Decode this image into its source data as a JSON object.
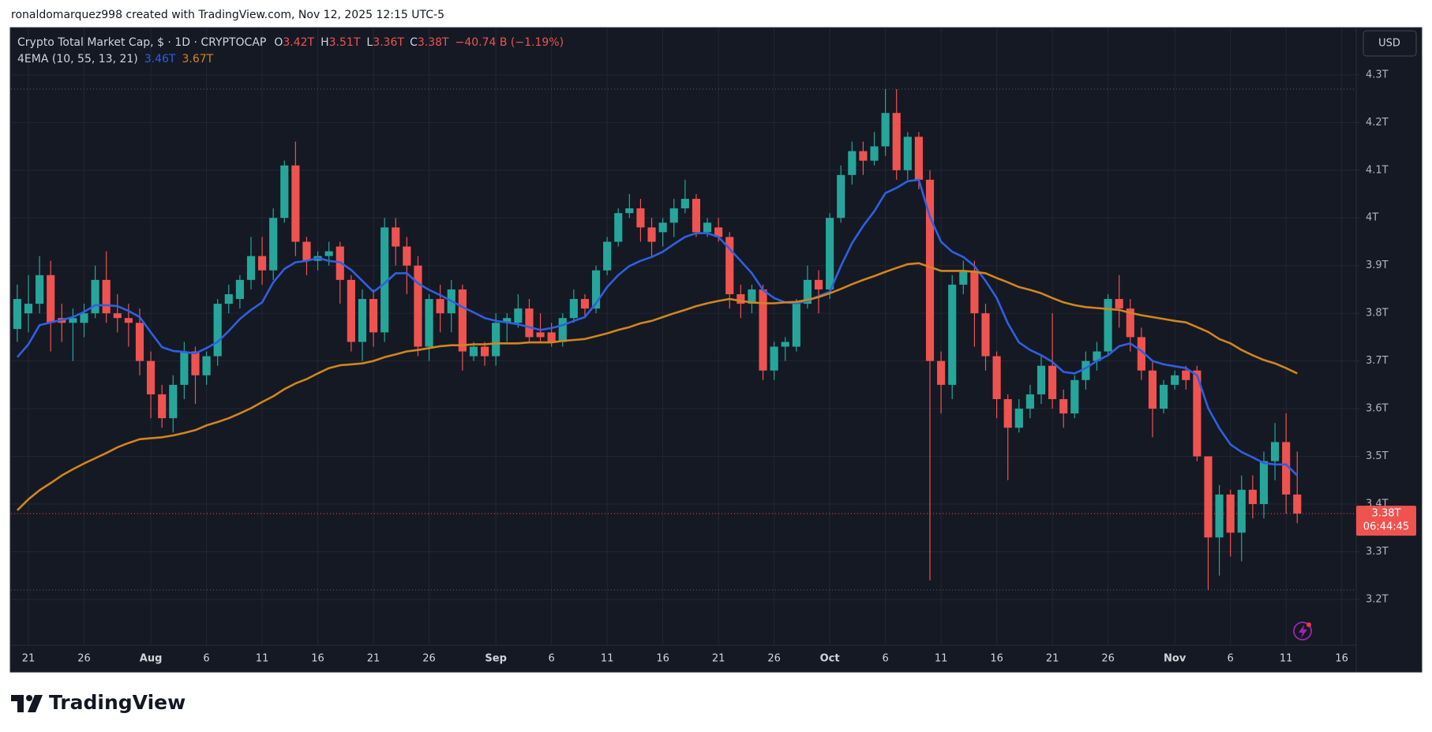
{
  "header": {
    "credit": "ronaldomarquez998 created with TradingView.com, Nov 12, 2025 12:15 UTC-5"
  },
  "chart_data": {
    "type": "candlestick",
    "title": "Crypto Total Market Cap, $ · 1D · CRYPTOCAP",
    "ohlc_legend": [
      [
        "O",
        "3.42T"
      ],
      [
        "H",
        "3.51T"
      ],
      [
        "L",
        "3.36T"
      ],
      [
        "C",
        "3.38T"
      ]
    ],
    "change": "−40.74 B (−1.19%)",
    "indicator": "4EMA (10, 55, 13, 21)",
    "up_color": "#26a69a",
    "down_color": "#ef5350",
    "open": [
      3.767,
      3.8,
      3.82,
      3.88,
      3.79,
      3.78,
      3.78,
      3.8,
      3.87,
      3.8,
      3.79,
      3.78,
      3.7,
      3.63,
      3.58,
      3.65,
      3.72,
      3.67,
      3.71,
      3.82,
      3.83,
      3.87,
      3.92,
      3.89,
      4.0,
      4.11,
      3.95,
      3.91,
      3.92,
      3.94,
      3.87,
      3.74,
      3.83,
      3.76,
      3.98,
      3.94,
      3.9,
      3.73,
      3.83,
      3.8,
      3.85,
      3.71,
      3.73,
      3.71,
      3.78,
      3.78,
      3.81,
      3.76,
      3.76,
      3.74,
      3.79,
      3.83,
      3.81,
      3.89,
      3.95,
      4.01,
      4.02,
      3.98,
      3.97,
      3.99,
      4.02,
      4.04,
      3.97,
      3.98,
      3.96,
      3.84,
      3.82,
      3.85,
      3.68,
      3.73,
      3.73,
      3.82,
      3.87,
      3.85,
      4.0,
      4.09,
      4.14,
      4.12,
      4.15,
      4.22,
      4.1,
      4.17,
      4.08,
      3.7,
      3.65,
      3.86,
      3.89,
      3.8,
      3.71,
      3.62,
      3.56,
      3.6,
      3.63,
      3.69,
      3.62,
      3.59,
      3.66,
      3.7,
      3.72,
      3.83,
      3.81,
      3.75,
      3.68,
      3.6,
      3.65,
      3.68,
      3.68,
      3.5,
      3.33,
      3.42,
      3.34,
      3.43,
      3.4,
      3.49,
      3.53,
      3.42
    ],
    "high": [
      3.86,
      3.88,
      3.92,
      3.91,
      3.82,
      3.81,
      3.82,
      3.9,
      3.93,
      3.84,
      3.82,
      3.81,
      3.72,
      3.65,
      3.67,
      3.74,
      3.73,
      3.72,
      3.83,
      3.86,
      3.88,
      3.96,
      3.96,
      4.02,
      4.12,
      4.16,
      3.96,
      3.93,
      3.95,
      3.95,
      3.88,
      3.85,
      3.85,
      4.0,
      4.0,
      3.96,
      3.92,
      3.84,
      3.86,
      3.87,
      3.86,
      3.74,
      3.74,
      3.8,
      3.8,
      3.84,
      3.83,
      3.8,
      3.78,
      3.8,
      3.85,
      3.84,
      3.9,
      3.96,
      4.02,
      4.05,
      4.04,
      4.0,
      4.0,
      4.04,
      4.08,
      4.05,
      4.0,
      4.0,
      3.97,
      3.86,
      3.86,
      3.86,
      3.74,
      3.75,
      3.83,
      3.9,
      3.89,
      4.01,
      4.11,
      4.16,
      4.16,
      4.18,
      4.27,
      4.27,
      4.18,
      4.18,
      4.1,
      3.72,
      3.88,
      3.91,
      3.91,
      3.82,
      3.72,
      3.63,
      3.62,
      3.65,
      3.71,
      3.8,
      3.64,
      3.67,
      3.72,
      3.74,
      3.84,
      3.88,
      3.83,
      3.77,
      3.7,
      3.66,
      3.68,
      3.69,
      3.69,
      3.5,
      3.44,
      3.43,
      3.46,
      3.46,
      3.51,
      3.57,
      3.59,
      3.51
    ],
    "low": [
      3.74,
      3.76,
      3.8,
      3.72,
      3.74,
      3.7,
      3.75,
      3.79,
      3.78,
      3.76,
      3.73,
      3.67,
      3.58,
      3.56,
      3.55,
      3.62,
      3.61,
      3.65,
      3.69,
      3.8,
      3.81,
      3.85,
      3.86,
      3.87,
      3.99,
      3.92,
      3.88,
      3.89,
      3.9,
      3.82,
      3.72,
      3.7,
      3.73,
      3.74,
      3.9,
      3.84,
      3.71,
      3.7,
      3.76,
      3.76,
      3.68,
      3.7,
      3.69,
      3.69,
      3.74,
      3.77,
      3.74,
      3.74,
      3.73,
      3.73,
      3.78,
      3.79,
      3.8,
      3.88,
      3.94,
      4.0,
      3.95,
      3.92,
      3.94,
      3.96,
      4.01,
      3.96,
      3.96,
      3.95,
      3.81,
      3.79,
      3.8,
      3.66,
      3.66,
      3.7,
      3.72,
      3.81,
      3.8,
      3.83,
      3.99,
      4.07,
      4.09,
      4.11,
      4.13,
      4.08,
      4.08,
      4.06,
      3.24,
      3.59,
      3.62,
      3.84,
      3.73,
      3.68,
      3.58,
      3.45,
      3.55,
      3.58,
      3.61,
      3.6,
      3.56,
      3.58,
      3.64,
      3.68,
      3.71,
      3.77,
      3.72,
      3.66,
      3.54,
      3.59,
      3.64,
      3.64,
      3.49,
      3.22,
      3.25,
      3.29,
      3.28,
      3.37,
      3.37,
      3.45,
      3.38,
      3.36
    ],
    "close": [
      3.83,
      3.82,
      3.88,
      3.78,
      3.78,
      3.79,
      3.8,
      3.87,
      3.8,
      3.79,
      3.78,
      3.7,
      3.63,
      3.58,
      3.65,
      3.72,
      3.67,
      3.71,
      3.82,
      3.84,
      3.87,
      3.92,
      3.89,
      4.0,
      4.11,
      3.95,
      3.91,
      3.92,
      3.93,
      3.87,
      3.74,
      3.83,
      3.76,
      3.98,
      3.94,
      3.9,
      3.73,
      3.83,
      3.8,
      3.85,
      3.72,
      3.73,
      3.71,
      3.78,
      3.79,
      3.81,
      3.75,
      3.75,
      3.74,
      3.79,
      3.83,
      3.81,
      3.89,
      3.95,
      4.01,
      4.02,
      3.98,
      3.95,
      3.99,
      4.02,
      4.04,
      3.97,
      3.99,
      3.96,
      3.84,
      3.82,
      3.85,
      3.68,
      3.73,
      3.74,
      3.82,
      3.87,
      3.85,
      4.0,
      4.09,
      4.14,
      4.12,
      4.15,
      4.22,
      4.1,
      4.17,
      4.08,
      3.7,
      3.65,
      3.86,
      3.89,
      3.8,
      3.71,
      3.62,
      3.56,
      3.6,
      3.63,
      3.69,
      3.62,
      3.59,
      3.66,
      3.7,
      3.72,
      3.83,
      3.81,
      3.75,
      3.68,
      3.6,
      3.65,
      3.67,
      3.66,
      3.5,
      3.33,
      3.42,
      3.34,
      3.43,
      3.4,
      3.49,
      3.53,
      3.42,
      3.38
    ],
    "series": [
      {
        "color": "#2f5fe3",
        "last_label": "3.46T",
        "values": [
          3.708,
          3.735,
          3.775,
          3.781,
          3.786,
          3.792,
          3.803,
          3.817,
          3.817,
          3.815,
          3.805,
          3.792,
          3.76,
          3.729,
          3.721,
          3.719,
          3.716,
          3.727,
          3.74,
          3.763,
          3.788,
          3.807,
          3.823,
          3.865,
          3.893,
          3.907,
          3.91,
          3.916,
          3.91,
          3.907,
          3.891,
          3.868,
          3.845,
          3.863,
          3.884,
          3.884,
          3.863,
          3.849,
          3.838,
          3.826,
          3.813,
          3.802,
          3.79,
          3.784,
          3.781,
          3.777,
          3.771,
          3.765,
          3.769,
          3.775,
          3.784,
          3.792,
          3.821,
          3.855,
          3.88,
          3.899,
          3.91,
          3.918,
          3.929,
          3.945,
          3.96,
          3.968,
          3.968,
          3.96,
          3.935,
          3.91,
          3.884,
          3.849,
          3.832,
          3.823,
          3.821,
          3.826,
          3.836,
          3.845,
          3.899,
          3.947,
          3.983,
          4.014,
          4.052,
          4.063,
          4.077,
          4.08,
          4.002,
          3.95,
          3.929,
          3.918,
          3.899,
          3.868,
          3.832,
          3.779,
          3.739,
          3.723,
          3.712,
          3.698,
          3.677,
          3.674,
          3.685,
          3.7,
          3.712,
          3.731,
          3.737,
          3.721,
          3.7,
          3.693,
          3.689,
          3.685,
          3.67,
          3.601,
          3.559,
          3.525,
          3.509,
          3.498,
          3.486,
          3.483,
          3.483,
          3.46
        ]
      },
      {
        "color": "#d3851c",
        "last_label": "3.67T",
        "values": [
          3.387,
          3.41,
          3.429,
          3.444,
          3.46,
          3.473,
          3.485,
          3.496,
          3.507,
          3.519,
          3.528,
          3.536,
          3.538,
          3.54,
          3.544,
          3.549,
          3.555,
          3.565,
          3.572,
          3.58,
          3.59,
          3.601,
          3.614,
          3.626,
          3.641,
          3.653,
          3.662,
          3.674,
          3.685,
          3.691,
          3.693,
          3.695,
          3.7,
          3.708,
          3.714,
          3.72,
          3.723,
          3.727,
          3.731,
          3.733,
          3.733,
          3.735,
          3.735,
          3.737,
          3.737,
          3.737,
          3.739,
          3.739,
          3.739,
          3.742,
          3.744,
          3.746,
          3.752,
          3.758,
          3.765,
          3.771,
          3.779,
          3.784,
          3.792,
          3.8,
          3.807,
          3.815,
          3.821,
          3.826,
          3.83,
          3.826,
          3.823,
          3.821,
          3.821,
          3.823,
          3.824,
          3.828,
          3.834,
          3.842,
          3.851,
          3.861,
          3.87,
          3.878,
          3.887,
          3.895,
          3.903,
          3.905,
          3.897,
          3.889,
          3.889,
          3.889,
          3.887,
          3.884,
          3.874,
          3.865,
          3.855,
          3.849,
          3.842,
          3.832,
          3.823,
          3.817,
          3.813,
          3.811,
          3.809,
          3.807,
          3.801,
          3.796,
          3.792,
          3.788,
          3.784,
          3.781,
          3.771,
          3.761,
          3.746,
          3.737,
          3.723,
          3.712,
          3.702,
          3.695,
          3.685,
          3.674
        ]
      }
    ],
    "price_label": "3.38T",
    "countdown": "06:44:45",
    "currency": "USD",
    "xlim": [
      -0.56,
      120.3
    ],
    "xticks": [
      {
        "value": 1,
        "label": "21"
      },
      {
        "value": 6,
        "label": "26"
      },
      {
        "value": 12,
        "label": "Aug"
      },
      {
        "value": 17,
        "label": "6"
      },
      {
        "value": 22,
        "label": "11"
      },
      {
        "value": 27,
        "label": "16"
      },
      {
        "value": 32,
        "label": "21"
      },
      {
        "value": 37,
        "label": "26"
      },
      {
        "value": 43,
        "label": "Sep"
      },
      {
        "value": 48,
        "label": "6"
      },
      {
        "value": 53,
        "label": "11"
      },
      {
        "value": 58,
        "label": "16"
      },
      {
        "value": 63,
        "label": "21"
      },
      {
        "value": 68,
        "label": "26"
      },
      {
        "value": 73,
        "label": "Oct"
      },
      {
        "value": 78,
        "label": "6"
      },
      {
        "value": 83,
        "label": "11"
      },
      {
        "value": 88,
        "label": "16"
      },
      {
        "value": 93,
        "label": "21"
      },
      {
        "value": 98,
        "label": "26"
      },
      {
        "value": 104,
        "label": "Nov"
      },
      {
        "value": 109,
        "label": "6"
      },
      {
        "value": 114,
        "label": "11"
      },
      {
        "value": 119,
        "label": "16"
      }
    ],
    "ylim": [
      3.104,
      4.399
    ],
    "yticks": [
      {
        "value": 3.2,
        "label": "3.2T"
      },
      {
        "value": 3.3,
        "label": "3.3T"
      },
      {
        "value": 3.4,
        "label": "3.4T"
      },
      {
        "value": 3.5,
        "label": "3.5T"
      },
      {
        "value": 3.6,
        "label": "3.6T"
      },
      {
        "value": 3.7,
        "label": "3.7T"
      },
      {
        "value": 3.8,
        "label": "3.8T"
      },
      {
        "value": 3.9,
        "label": "3.9T"
      },
      {
        "value": 4,
        "label": "4T"
      },
      {
        "value": 4.1,
        "label": "4.1T"
      },
      {
        "value": 4.2,
        "label": "4.2T"
      },
      {
        "value": 4.3,
        "label": "4.3T"
      }
    ],
    "grid": true
  },
  "footer": {
    "logo": "TradingView"
  }
}
